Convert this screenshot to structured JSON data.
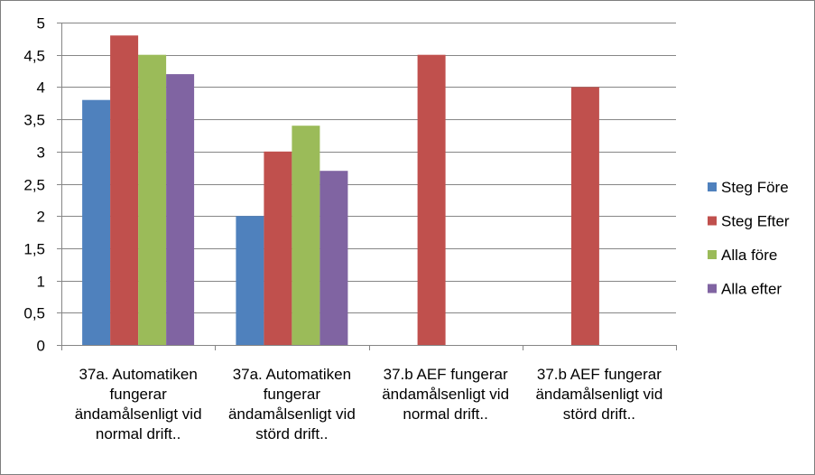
{
  "chart_data": {
    "type": "bar",
    "title": "",
    "xlabel": "",
    "ylabel": "",
    "ylim": [
      0,
      5
    ],
    "yticks": [
      0,
      0.5,
      1,
      1.5,
      2,
      2.5,
      3,
      3.5,
      4,
      4.5,
      5
    ],
    "ytick_labels": [
      "0",
      "0,5",
      "1",
      "1,5",
      "2",
      "2,5",
      "3",
      "3,5",
      "4",
      "4,5",
      "5"
    ],
    "grid": true,
    "legend_position": "right",
    "categories": [
      [
        "37a. Automatiken",
        "fungerar",
        "ändamålsenligt vid",
        "normal drift.."
      ],
      [
        "37a. Automatiken",
        "fungerar",
        "ändamålsenligt vid",
        "störd drift.."
      ],
      [
        "37.b AEF fungerar",
        "ändamålsenligt vid",
        "normal drift.."
      ],
      [
        "37.b AEF fungerar",
        "ändamålsenligt vid",
        "störd drift.."
      ]
    ],
    "series": [
      {
        "name": "Steg Före",
        "color": "#4f81bd",
        "values": [
          3.8,
          2.0,
          null,
          null
        ]
      },
      {
        "name": "Steg Efter",
        "color": "#c0504d",
        "values": [
          4.8,
          3.0,
          4.5,
          4.0
        ]
      },
      {
        "name": "Alla före",
        "color": "#9bbb59",
        "values": [
          4.5,
          3.4,
          null,
          null
        ]
      },
      {
        "name": "Alla efter",
        "color": "#8064a2",
        "values": [
          4.2,
          2.7,
          null,
          null
        ]
      }
    ]
  }
}
